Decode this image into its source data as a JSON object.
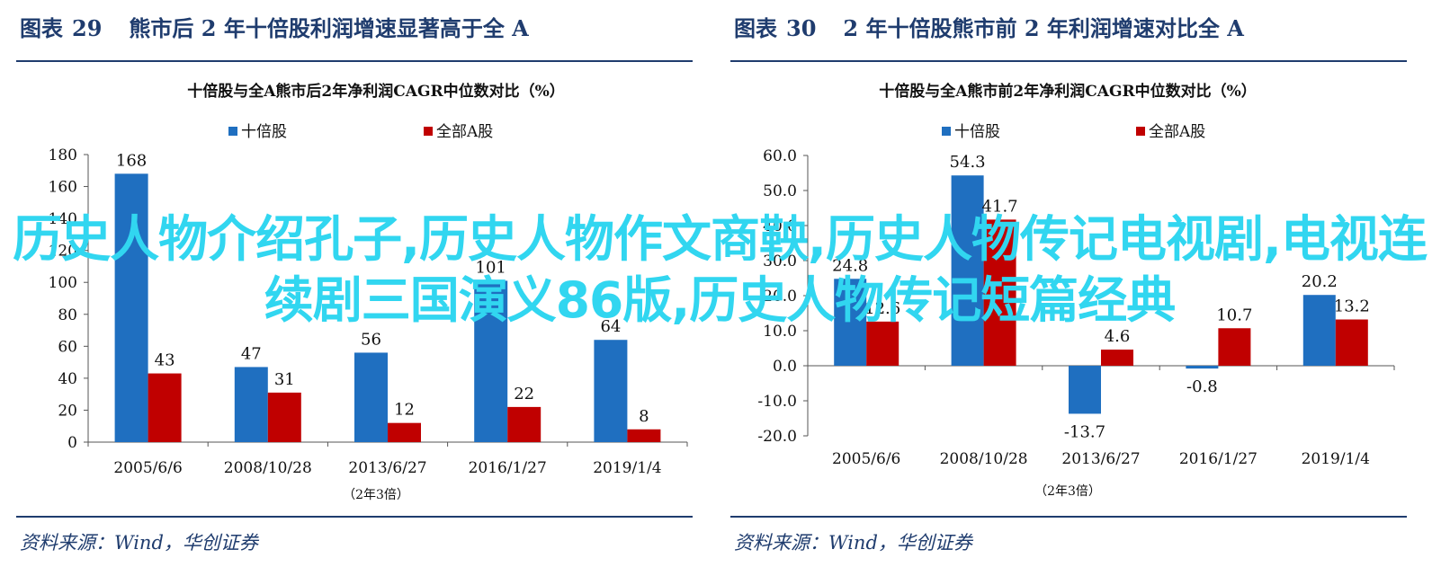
{
  "panels": [
    {
      "figure_label": "图表",
      "figure_number": "29",
      "figure_title": "熊市后 2 年十倍股利润增速显著高于全 A",
      "source": "资料来源：Wind，华创证券"
    },
    {
      "figure_label": "图表",
      "figure_number": "30",
      "figure_title": "2 年十倍股熊市前 2 年利润增速对比全 A",
      "source": "资料来源：Wind，华创证券"
    }
  ],
  "chart_data": [
    {
      "type": "bar",
      "title": "十倍股与全A熊市后2年净利润CAGR中位数对比（%）",
      "xlabel": "（2年3倍）",
      "ylabel": "",
      "categories": [
        "2005/6/6",
        "2008/10/28",
        "2013/6/27",
        "2016/1/27",
        "2019/1/4"
      ],
      "series": [
        {
          "name": "十倍股",
          "color": "#1f6fc0",
          "values": [
            168,
            47,
            56,
            101,
            64
          ],
          "labels": [
            "168",
            "47",
            "56",
            "101",
            "64"
          ]
        },
        {
          "name": "全部A股",
          "color": "#c00000",
          "values": [
            43,
            31,
            12,
            22,
            8
          ],
          "labels": [
            "43",
            "31",
            "12",
            "22",
            "8"
          ]
        }
      ],
      "ylim": [
        0,
        180
      ],
      "yticks": [
        0,
        20,
        40,
        60,
        80,
        100,
        120,
        140,
        160,
        180
      ],
      "ytick_labels": [
        "0",
        "20",
        "40",
        "60",
        "80",
        "100",
        "120",
        "140",
        "160",
        "180"
      ],
      "legend": "top",
      "grid": false
    },
    {
      "type": "bar",
      "title": "十倍股与全A熊市前2年净利润CAGR中位数对比（%）",
      "xlabel": "（2年3倍）",
      "ylabel": "",
      "categories": [
        "2005/6/6",
        "2008/10/28",
        "2013/6/27",
        "2016/1/27",
        "2019/1/4"
      ],
      "series": [
        {
          "name": "十倍股",
          "color": "#1f6fc0",
          "values": [
            24.8,
            54.3,
            -13.7,
            -0.8,
            20.2
          ],
          "labels": [
            "24.8",
            "54.3",
            "-13.7",
            "-0.8",
            "20.2"
          ]
        },
        {
          "name": "全部A股",
          "color": "#c00000",
          "values": [
            12.6,
            41.7,
            4.6,
            10.7,
            13.2
          ],
          "labels": [
            "12.6",
            "41.7",
            "4.6",
            "10.7",
            "13.2"
          ]
        }
      ],
      "ylim": [
        -20,
        60
      ],
      "yticks": [
        -20,
        -10,
        0,
        10,
        20,
        30,
        40,
        50,
        60
      ],
      "ytick_labels": [
        "-20.0",
        "-10.0",
        "0.0",
        "10.0",
        "20.0",
        "30.0",
        "40.0",
        "50.0",
        "60.0"
      ],
      "legend": "top",
      "grid": false
    }
  ],
  "overlay_text": "历史人物介绍孔子,历史人物作文商鞅,历史人物传记电视剧,电视连续剧三国演义86版,历史人物传记短篇经典"
}
